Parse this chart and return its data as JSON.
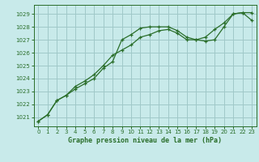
{
  "title": "Graphe pression niveau de la mer (hPa)",
  "bg_color": "#c8eaea",
  "grid_color": "#a0c8c8",
  "line_color": "#2a6e2a",
  "xlim": [
    -0.5,
    23.5
  ],
  "ylim": [
    1020.3,
    1029.7
  ],
  "yticks": [
    1021,
    1022,
    1023,
    1024,
    1025,
    1026,
    1027,
    1028,
    1029
  ],
  "xticks": [
    0,
    1,
    2,
    3,
    4,
    5,
    6,
    7,
    8,
    9,
    10,
    11,
    12,
    13,
    14,
    15,
    16,
    17,
    18,
    19,
    20,
    21,
    22,
    23
  ],
  "series1_x": [
    0,
    1,
    2,
    3,
    4,
    5,
    6,
    7,
    8,
    9,
    10,
    11,
    12,
    13,
    14,
    15,
    16,
    17,
    18,
    19,
    20,
    21,
    22,
    23
  ],
  "series1_y": [
    1020.7,
    1021.2,
    1022.3,
    1022.7,
    1023.4,
    1023.8,
    1024.3,
    1025.0,
    1025.8,
    1026.2,
    1026.6,
    1027.2,
    1027.4,
    1027.7,
    1027.8,
    1027.5,
    1027.0,
    1027.0,
    1027.2,
    1027.8,
    1028.3,
    1029.0,
    1029.1,
    1028.5
  ],
  "series2_x": [
    0,
    1,
    2,
    3,
    4,
    5,
    6,
    7,
    8,
    9,
    10,
    11,
    12,
    13,
    14,
    15,
    16,
    17,
    18,
    19,
    20,
    21,
    22,
    23
  ],
  "series2_y": [
    1020.7,
    1021.2,
    1022.3,
    1022.7,
    1023.2,
    1023.6,
    1024.0,
    1024.8,
    1025.3,
    1027.0,
    1027.4,
    1027.9,
    1028.0,
    1028.0,
    1028.0,
    1027.7,
    1027.2,
    1027.0,
    1026.9,
    1027.0,
    1028.0,
    1029.0,
    1029.1,
    1029.1
  ]
}
